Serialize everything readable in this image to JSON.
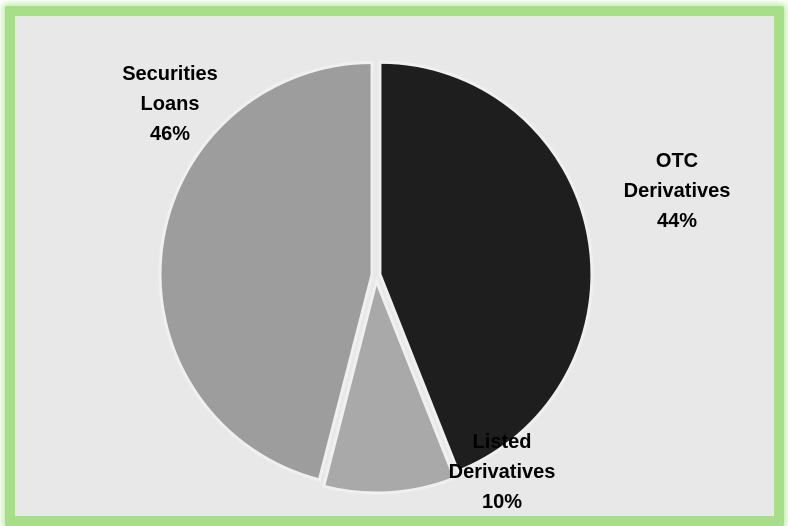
{
  "chart_data": {
    "type": "pie",
    "slices": [
      {
        "name": "OTC Derivatives",
        "label_lines": [
          "OTC",
          "Derivatives",
          "44%"
        ],
        "value": 44,
        "color": "#1e1e1e"
      },
      {
        "name": "Listed Derivatives",
        "label_lines": [
          "Listed",
          "Derivatives",
          "10%"
        ],
        "value": 10,
        "color": "#a9a9a9"
      },
      {
        "name": "Securities Loans",
        "label_lines": [
          "Securities",
          "Loans",
          "46%"
        ],
        "value": 46,
        "color": "#9d9d9d"
      }
    ],
    "title": "",
    "legend": "none",
    "start": "top",
    "direction": "clockwise"
  },
  "colors": {
    "frame_border": "#a6de8a",
    "plot_background": "#e8e8e8",
    "slice_separator": "#f0f0f0"
  }
}
